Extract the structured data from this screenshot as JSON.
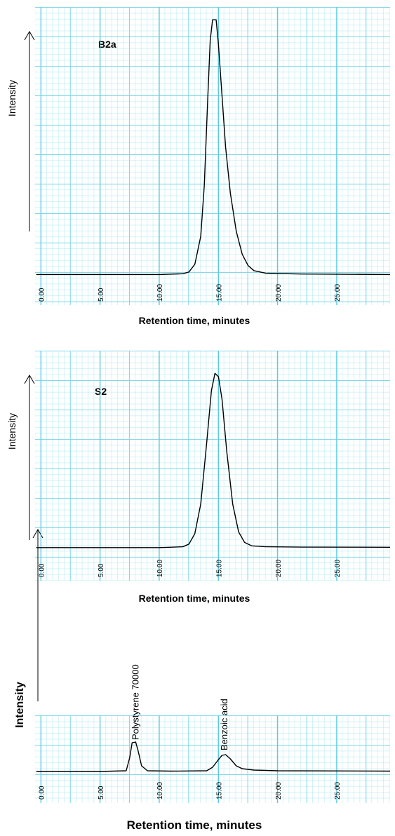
{
  "chart_data": [
    {
      "type": "line",
      "title": "B2a",
      "ylabel": "Intensity",
      "xlabel": "Retention time, minutes",
      "xlim": [
        -0.5,
        29.5
      ],
      "ylim": [
        -12,
        105
      ],
      "xticks": [
        {
          "value": 0,
          "label": "0.00"
        },
        {
          "value": 5,
          "label": "5.00"
        },
        {
          "value": 10,
          "label": "10.00"
        },
        {
          "value": 15,
          "label": "15.00"
        },
        {
          "value": 20,
          "label": "20.00"
        },
        {
          "value": 25,
          "label": "25.00"
        }
      ],
      "grid": true,
      "color": "#000000",
      "x": [
        -0.4,
        5,
        10,
        12,
        12.5,
        13,
        13.5,
        13.8,
        14.1,
        14.3,
        14.5,
        14.8,
        15.0,
        15.3,
        15.6,
        16,
        16.5,
        17,
        17.5,
        18,
        19,
        22,
        29.5
      ],
      "values": [
        0,
        0,
        0,
        0.3,
        1,
        4,
        15,
        35,
        70,
        92,
        100,
        100,
        90,
        70,
        50,
        32,
        17,
        8,
        3.5,
        1.5,
        0.5,
        0.2,
        0
      ]
    },
    {
      "type": "line",
      "title": "S2",
      "ylabel": "Intensity",
      "xlabel": "Retention time, minutes",
      "xlim": [
        -0.5,
        29.5
      ],
      "ylim": [
        -19,
        113
      ],
      "xticks": [
        {
          "value": 0,
          "label": "0.00"
        },
        {
          "value": 5,
          "label": "5.00"
        },
        {
          "value": 10,
          "label": "10.00"
        },
        {
          "value": 15,
          "label": "15.00"
        },
        {
          "value": 20,
          "label": "20.00"
        },
        {
          "value": 25,
          "label": "25.00"
        }
      ],
      "grid": true,
      "color": "#000000",
      "x": [
        -0.4,
        5,
        10,
        12,
        12.5,
        13,
        13.5,
        14,
        14.4,
        14.7,
        15.0,
        15.3,
        15.7,
        16.2,
        16.7,
        17.2,
        17.8,
        19,
        22,
        29.5
      ],
      "values": [
        0,
        0,
        0,
        0.5,
        2,
        8,
        25,
        60,
        90,
        100,
        98,
        85,
        55,
        25,
        9,
        3,
        1,
        0.5,
        0.3,
        0.2
      ]
    },
    {
      "type": "line",
      "ylabel": "Intensity",
      "xlabel": "Retention time, minutes",
      "xlim": [
        -0.5,
        29.5
      ],
      "ylim": [
        -45,
        80
      ],
      "xticks": [
        {
          "value": 0,
          "label": "0.00"
        },
        {
          "value": 5,
          "label": "5.00"
        },
        {
          "value": 10,
          "label": "10.00"
        },
        {
          "value": 15,
          "label": "15.00"
        },
        {
          "value": 20,
          "label": "20.00"
        },
        {
          "value": 25,
          "label": "25.00"
        }
      ],
      "grid": true,
      "color": "#000000",
      "annotations": [
        {
          "text": "Polystyrene 70000",
          "x": 8.0
        },
        {
          "text": "Benzoic acid",
          "x": 15.5
        }
      ],
      "x": [
        -0.4,
        5,
        7.2,
        7.5,
        7.7,
        8.0,
        8.2,
        8.5,
        9,
        11,
        14,
        14.5,
        15,
        15.3,
        15.6,
        16,
        16.5,
        17,
        18,
        20,
        29.5
      ],
      "values": [
        0,
        0,
        1,
        20,
        41,
        42,
        30,
        8,
        1,
        0.5,
        1,
        6,
        17,
        23,
        24,
        18,
        8,
        4,
        2,
        1,
        0.5
      ]
    }
  ]
}
